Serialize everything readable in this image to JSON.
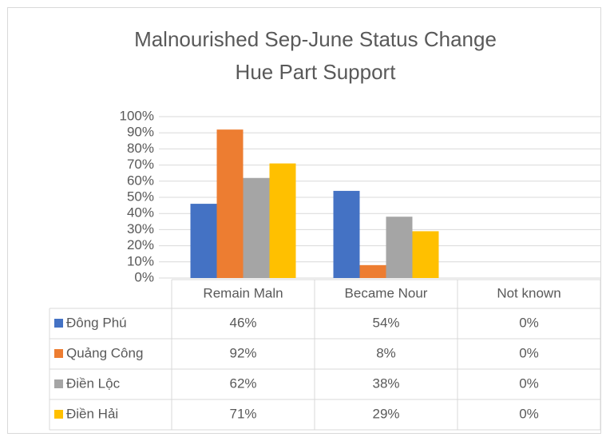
{
  "chart_data": {
    "type": "bar",
    "title": [
      "Malnourished Sep-June Status Change",
      "Hue Part Support"
    ],
    "categories": [
      "Remain Maln",
      "Became Nour",
      "Not known"
    ],
    "series": [
      {
        "name": "Đông Phú",
        "color": "#4472c4",
        "values": [
          46,
          54,
          0
        ],
        "value_labels": [
          "46%",
          "54%",
          "0%"
        ]
      },
      {
        "name": "Quảng Công",
        "color": "#ed7d31",
        "values": [
          92,
          8,
          0
        ],
        "value_labels": [
          "92%",
          "8%",
          "0%"
        ]
      },
      {
        "name": "Điền Lộc",
        "color": "#a5a5a5",
        "values": [
          62,
          38,
          0
        ],
        "value_labels": [
          "62%",
          "38%",
          "0%"
        ]
      },
      {
        "name": "Điền Hải",
        "color": "#ffc000",
        "values": [
          71,
          29,
          0
        ],
        "value_labels": [
          "71%",
          "29%",
          "0%"
        ]
      }
    ],
    "ylim": [
      0,
      100
    ],
    "yticks": [
      {
        "value": 0,
        "label": "0%"
      },
      {
        "value": 10,
        "label": "10%"
      },
      {
        "value": 20,
        "label": "20%"
      },
      {
        "value": 30,
        "label": "30%"
      },
      {
        "value": 40,
        "label": "40%"
      },
      {
        "value": 50,
        "label": "50%"
      },
      {
        "value": 60,
        "label": "60%"
      },
      {
        "value": 70,
        "label": "70%"
      },
      {
        "value": 80,
        "label": "80%"
      },
      {
        "value": 90,
        "label": "90%"
      },
      {
        "value": 100,
        "label": "100%"
      }
    ],
    "grid": true
  }
}
